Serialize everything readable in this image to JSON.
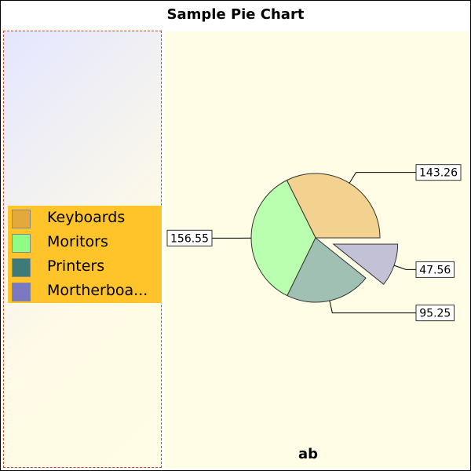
{
  "chart_data": {
    "type": "pie",
    "title": "Sample Pie Chart",
    "subtitle": "ab",
    "categories": [
      "Keyboards",
      "Moritors",
      "Printers",
      "Mortherboards"
    ],
    "legend_labels": [
      "Keyboards",
      "Moritors",
      "Printers",
      "Mortherboa..."
    ],
    "values": [
      143.26,
      156.55,
      95.25,
      47.56
    ],
    "value_labels": [
      "143.26",
      "156.55",
      "95.25",
      "47.56"
    ],
    "exploded": [
      false,
      false,
      false,
      true
    ],
    "legend_placement": "left",
    "slice_colors": [
      "#f2d28e",
      "#baffb0",
      "#9fc0b2",
      "#c2c1d6"
    ],
    "legend_colors": [
      "#e3a93c",
      "#8dfd86",
      "#3e7a78",
      "#7b79c2"
    ]
  }
}
